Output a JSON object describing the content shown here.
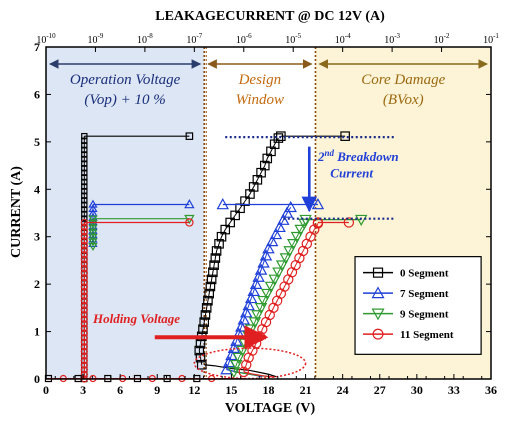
{
  "chart_data": {
    "type": "scatter",
    "title": "LEAKAGECURRENT @ DC 12V (A)",
    "xlabel": "VOLTAGE (V)",
    "ylabel": "CURRENT (A)",
    "xlim": [
      0,
      36
    ],
    "ylim": [
      0,
      7
    ],
    "x_ticks": [
      "0",
      "3",
      "6",
      "9",
      "12",
      "15",
      "18",
      "21",
      "24",
      "27",
      "30",
      "33",
      "36"
    ],
    "y_ticks": [
      "0",
      "1",
      "2",
      "3",
      "4",
      "5",
      "6",
      "7"
    ],
    "top_axis": {
      "label": "LEAKAGECURRENT @ DC 12V (A)",
      "scale": "log",
      "range": [
        "1e-10",
        "1e-1"
      ],
      "tick_labels": [
        {
          "base": "10",
          "exp": "-10"
        },
        {
          "base": "10",
          "exp": "-9"
        },
        {
          "base": "10",
          "exp": "-8"
        },
        {
          "base": "10",
          "exp": "-7"
        },
        {
          "base": "10",
          "exp": "-6"
        },
        {
          "base": "10",
          "exp": "-5"
        },
        {
          "base": "10",
          "exp": "-4"
        },
        {
          "base": "10",
          "exp": "-3"
        },
        {
          "base": "10",
          "exp": "-2"
        },
        {
          "base": "10",
          "exp": "-1"
        }
      ]
    },
    "regions": [
      {
        "label": [
          "Operation Voltage",
          "(Vop) + 10 %"
        ],
        "x_range": [
          0,
          12.8
        ],
        "color": "#dde6f4",
        "text_color": "#1a2f7a",
        "arrow_color": "#2b3d6b"
      },
      {
        "label": [
          "Design",
          "Window"
        ],
        "x_range": [
          12.8,
          21.8
        ],
        "color": "#ffffff",
        "text_color": "#c46a10",
        "arrow_color": "#8a5a1c"
      },
      {
        "label": [
          "Core Damage",
          "(BVox)"
        ],
        "x_range": [
          21.8,
          36
        ],
        "color": "#fdf3d6",
        "text_color": "#9a6a10",
        "arrow_color": "#8a6a1c"
      }
    ],
    "legend": {
      "position": "lower-right",
      "title": ""
    },
    "series": [
      {
        "name": "0 Segment",
        "marker": "square",
        "color": "#000000",
        "leakage": {
          "x": 3.1,
          "y_range": [
            0,
            5.12
          ],
          "leak_exp": [
            -9,
            -7.1
          ]
        },
        "snapback": [
          [
            12.6,
            0.3
          ],
          [
            12.5,
            0.45
          ],
          [
            12.4,
            0.6
          ],
          [
            12.5,
            0.75
          ],
          [
            12.6,
            0.9
          ],
          [
            12.7,
            1.05
          ],
          [
            12.8,
            1.2
          ],
          [
            12.9,
            1.35
          ],
          [
            13.0,
            1.5
          ],
          [
            13.1,
            1.65
          ],
          [
            13.2,
            1.8
          ],
          [
            13.3,
            1.95
          ],
          [
            13.4,
            2.1
          ],
          [
            13.5,
            2.25
          ],
          [
            13.6,
            2.4
          ],
          [
            13.7,
            2.55
          ],
          [
            13.8,
            2.7
          ],
          [
            14.0,
            2.85
          ],
          [
            14.2,
            3.0
          ],
          [
            14.5,
            3.15
          ],
          [
            14.9,
            3.3
          ],
          [
            15.3,
            3.45
          ],
          [
            15.7,
            3.6
          ],
          [
            16.1,
            3.75
          ],
          [
            16.5,
            3.9
          ],
          [
            16.8,
            4.05
          ],
          [
            17.1,
            4.2
          ],
          [
            17.4,
            4.35
          ],
          [
            17.7,
            4.5
          ],
          [
            17.9,
            4.65
          ],
          [
            18.2,
            4.8
          ],
          [
            18.5,
            4.95
          ],
          [
            18.8,
            5.08
          ]
        ],
        "trigger": [
          [
            18.6,
            0.05
          ],
          [
            18.0,
            0.1
          ],
          [
            16.5,
            0.18
          ],
          [
            15.0,
            0.22
          ],
          [
            13.6,
            0.28
          ],
          [
            12.8,
            0.3
          ]
        ],
        "breakdown": [
          [
            19.0,
            5.12
          ],
          [
            24.2,
            5.12
          ]
        ]
      },
      {
        "name": "7 Segment",
        "marker": "triangle-up",
        "color": "#1f3fd8",
        "leakage": {
          "x": 3.8,
          "y_range": [
            2.85,
            3.68
          ],
          "leak_exp": [
            -9,
            -7.1
          ]
        },
        "snapback": [
          [
            14.6,
            0.2
          ],
          [
            14.8,
            0.35
          ],
          [
            15.0,
            0.5
          ],
          [
            15.2,
            0.65
          ],
          [
            15.4,
            0.8
          ],
          [
            15.6,
            0.95
          ],
          [
            15.8,
            1.1
          ],
          [
            16.0,
            1.25
          ],
          [
            16.2,
            1.4
          ],
          [
            16.4,
            1.55
          ],
          [
            16.6,
            1.7
          ],
          [
            16.8,
            1.85
          ],
          [
            17.0,
            2.0
          ],
          [
            17.2,
            2.15
          ],
          [
            17.4,
            2.3
          ],
          [
            17.6,
            2.45
          ],
          [
            17.8,
            2.6
          ],
          [
            18.0,
            2.75
          ],
          [
            18.3,
            2.9
          ],
          [
            18.6,
            3.05
          ],
          [
            18.9,
            3.2
          ],
          [
            19.2,
            3.35
          ],
          [
            19.5,
            3.5
          ],
          [
            19.8,
            3.62
          ]
        ],
        "trigger": [
          [
            17.5,
            0.05
          ],
          [
            16.5,
            0.1
          ],
          [
            15.4,
            0.15
          ],
          [
            14.6,
            0.2
          ]
        ],
        "breakdown": [
          [
            14.3,
            3.68
          ],
          [
            22.0,
            3.68
          ]
        ]
      },
      {
        "name": "9 Segment",
        "marker": "triangle-down",
        "color": "#2f9a2f",
        "leakage": {
          "x": 3.8,
          "y_range": [
            2.8,
            3.38
          ],
          "leak_exp": [
            -9,
            -7.1
          ]
        },
        "snapback": [
          [
            15.2,
            0.15
          ],
          [
            15.4,
            0.3
          ],
          [
            15.6,
            0.45
          ],
          [
            15.9,
            0.6
          ],
          [
            16.1,
            0.75
          ],
          [
            16.4,
            0.9
          ],
          [
            16.6,
            1.05
          ],
          [
            16.9,
            1.2
          ],
          [
            17.1,
            1.35
          ],
          [
            17.4,
            1.5
          ],
          [
            17.6,
            1.65
          ],
          [
            17.9,
            1.8
          ],
          [
            18.2,
            1.95
          ],
          [
            18.5,
            2.1
          ],
          [
            18.8,
            2.25
          ],
          [
            19.1,
            2.4
          ],
          [
            19.4,
            2.55
          ],
          [
            19.7,
            2.7
          ],
          [
            20.0,
            2.85
          ],
          [
            20.3,
            3.0
          ],
          [
            20.6,
            3.15
          ],
          [
            20.9,
            3.28
          ]
        ],
        "trigger": [
          [
            18.0,
            0.05
          ],
          [
            17.0,
            0.08
          ],
          [
            16.0,
            0.12
          ],
          [
            15.2,
            0.15
          ]
        ],
        "breakdown": [
          [
            21.0,
            3.36
          ],
          [
            25.5,
            3.36
          ]
        ]
      },
      {
        "name": "11 Segment",
        "marker": "circle",
        "color": "#e02020",
        "leakage": {
          "x": 3.1,
          "y_range": [
            0,
            3.3
          ],
          "leak_exp": [
            -9,
            -7.1
          ]
        },
        "snapback": [
          [
            16.0,
            0.15
          ],
          [
            16.2,
            0.3
          ],
          [
            16.4,
            0.45
          ],
          [
            16.7,
            0.6
          ],
          [
            17.0,
            0.75
          ],
          [
            17.3,
            0.9
          ],
          [
            17.5,
            1.05
          ],
          [
            17.8,
            1.2
          ],
          [
            18.1,
            1.35
          ],
          [
            18.4,
            1.5
          ],
          [
            18.7,
            1.65
          ],
          [
            19.0,
            1.8
          ],
          [
            19.3,
            1.95
          ],
          [
            19.6,
            2.1
          ],
          [
            19.9,
            2.25
          ],
          [
            20.2,
            2.4
          ],
          [
            20.5,
            2.55
          ],
          [
            20.8,
            2.7
          ],
          [
            21.1,
            2.85
          ],
          [
            21.4,
            3.0
          ],
          [
            21.7,
            3.15
          ],
          [
            22.0,
            3.28
          ]
        ],
        "trigger": [
          [
            18.5,
            0.04
          ],
          [
            17.5,
            0.07
          ],
          [
            16.6,
            0.11
          ],
          [
            16.0,
            0.15
          ]
        ],
        "breakdown": [
          [
            22.0,
            3.3
          ],
          [
            24.5,
            3.3
          ]
        ]
      }
    ],
    "annotations": [
      {
        "label": "2nd Breakdown Current",
        "text_main": "2",
        "text_sup": "nd",
        "text_rest": " Breakdown",
        "text_line2": "Current",
        "color": "#1f3fd8",
        "arrow_from": [
          21.3,
          4.9
        ],
        "arrow_to": [
          21.3,
          3.55
        ]
      },
      {
        "label": "Holding Voltage",
        "text": "Holding Voltage",
        "color": "#e02020",
        "arrow_from": [
          8.8,
          0.88
        ],
        "arrow_to": [
          17.8,
          0.88
        ]
      }
    ],
    "guides": [
      {
        "type": "hline",
        "y": 5.1,
        "x_range": [
          14.5,
          28.2
        ],
        "style": "dotted",
        "color": "#1a2a8a"
      },
      {
        "type": "hline",
        "y": 3.38,
        "x_range": [
          19.2,
          28.2
        ],
        "style": "dotted",
        "color": "#1a2a8a"
      },
      {
        "type": "ellipse",
        "cx": 16.5,
        "cy": 0.33,
        "rx": 4.5,
        "ry": 0.32,
        "style": "dotted",
        "color": "#e02020"
      }
    ]
  }
}
